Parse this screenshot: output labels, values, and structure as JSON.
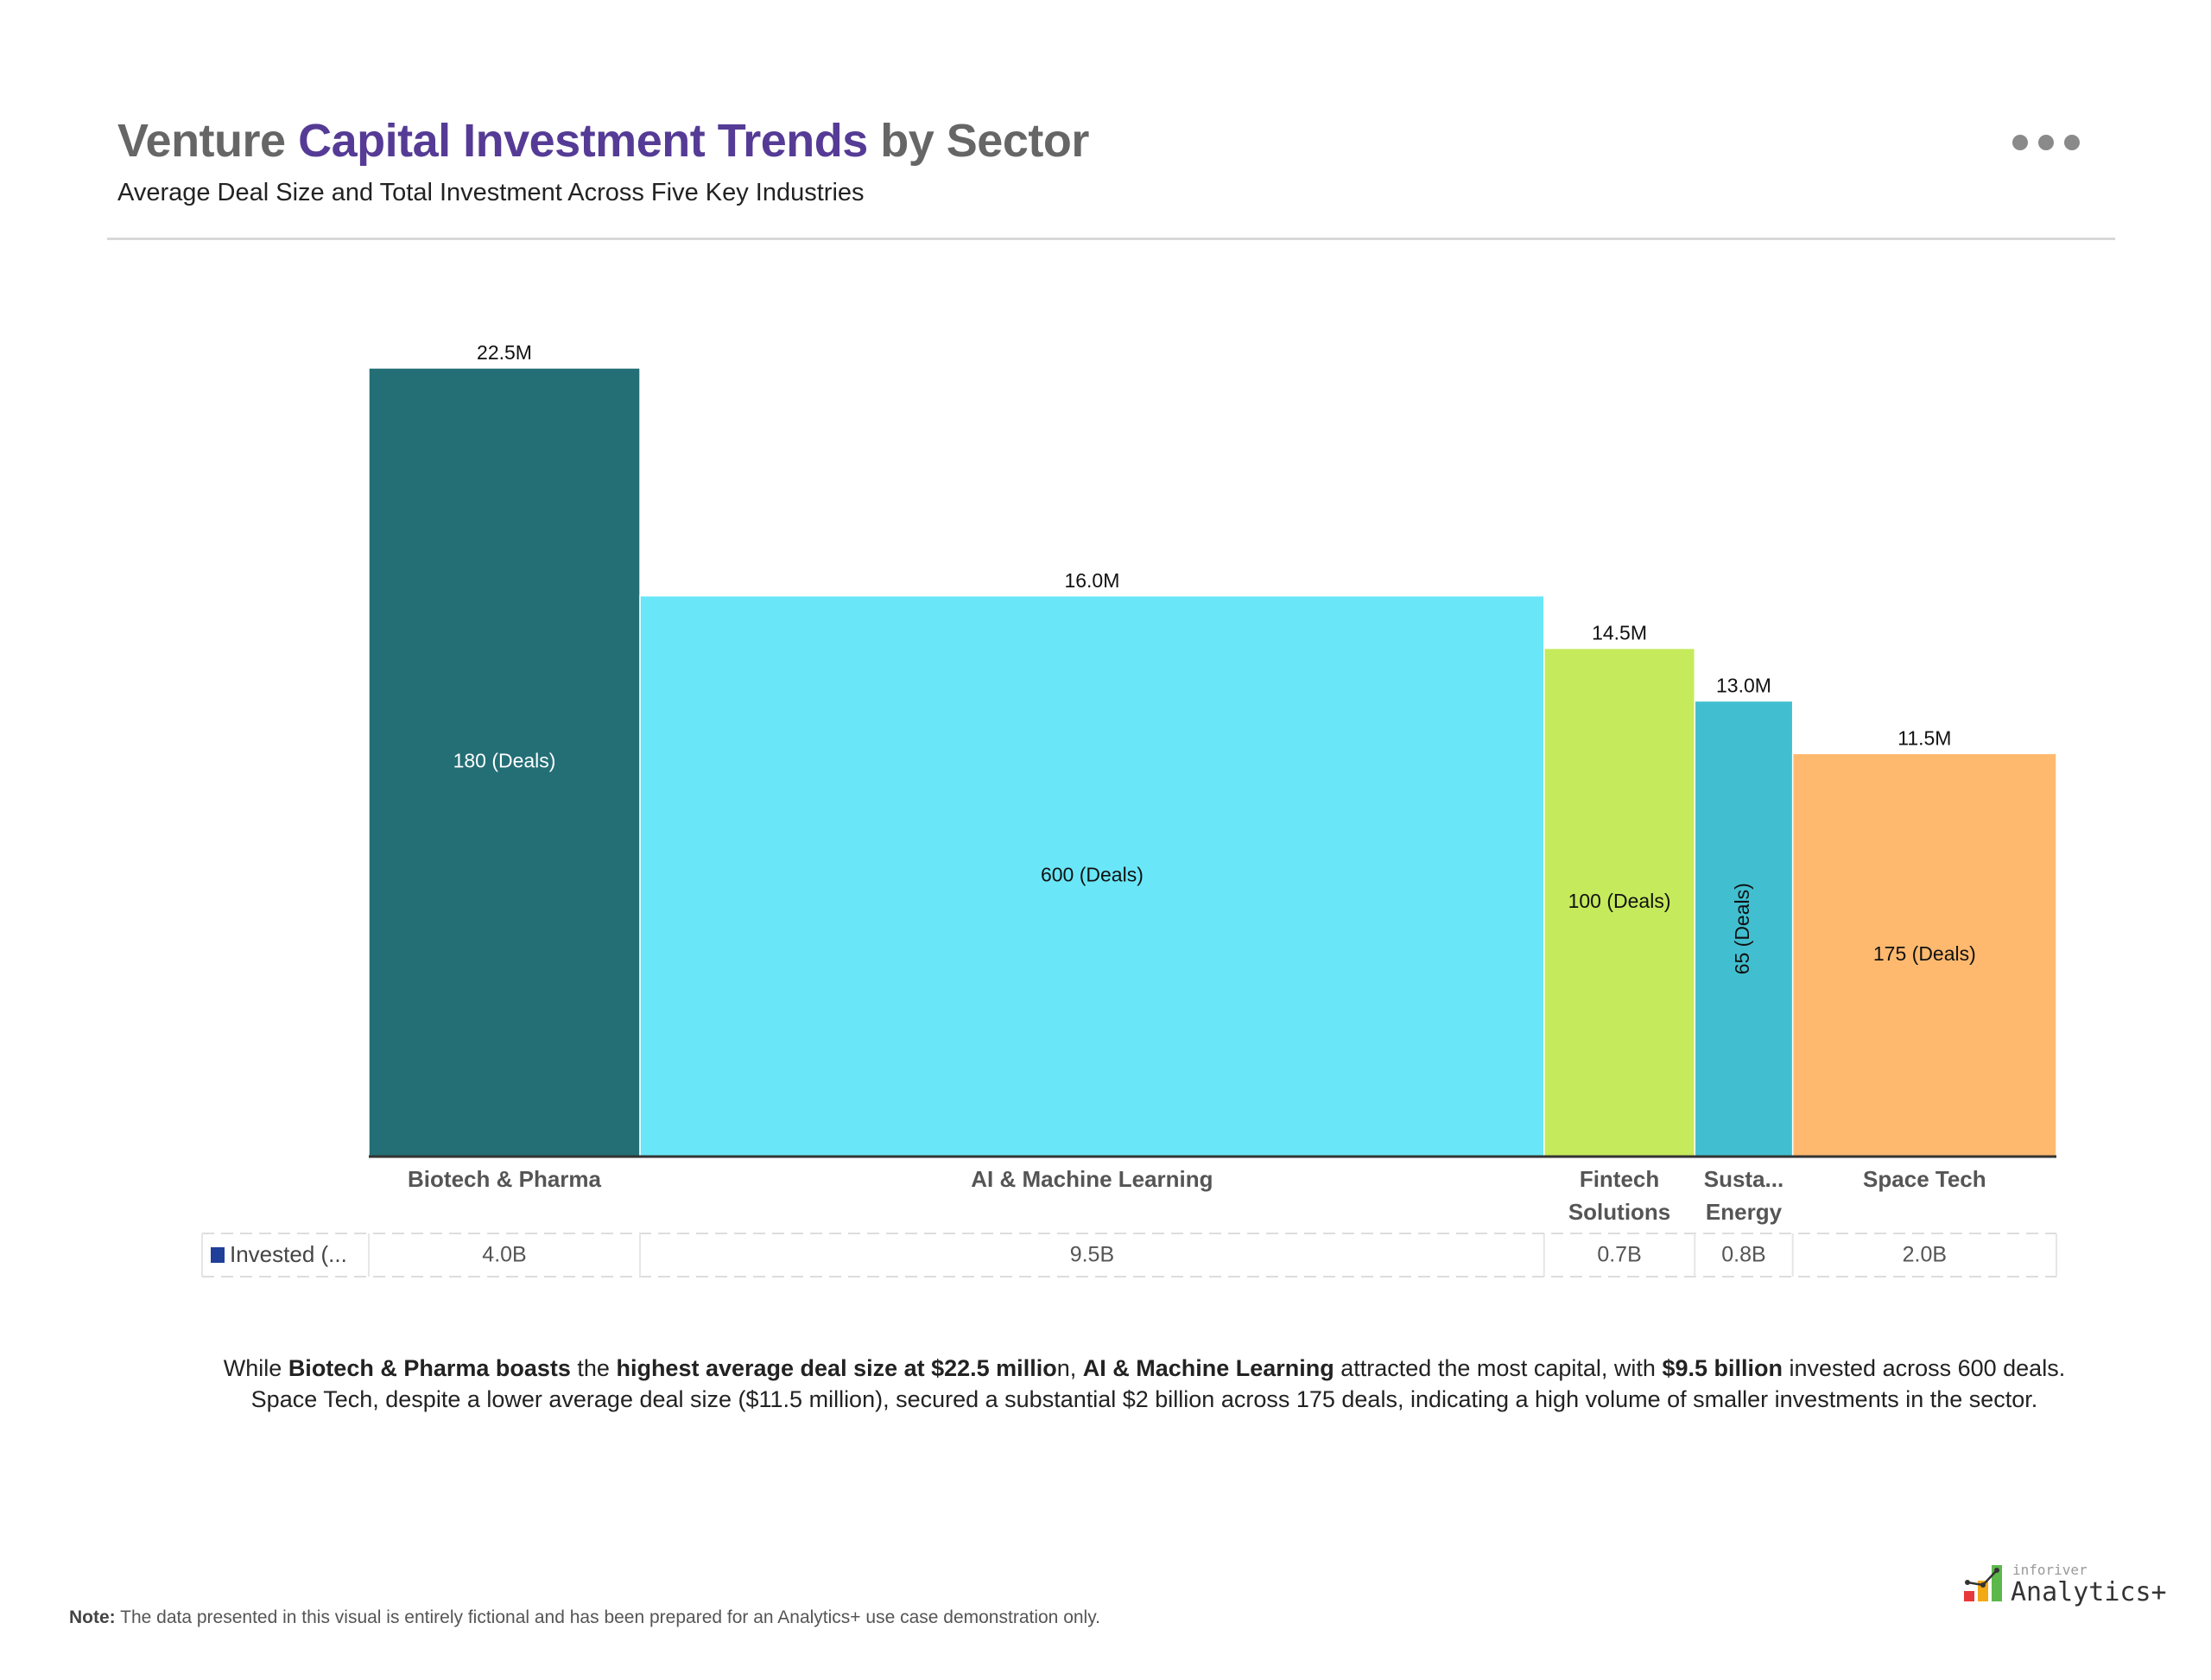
{
  "header": {
    "title_part1": "Venture ",
    "title_highlight": "Capital Investment Trends",
    "title_part2": " by Sector",
    "subtitle": "Average Deal Size and Total Investment Across Five Key Industries",
    "more_icon": "more-horizontal-icon"
  },
  "chart_data": {
    "type": "bar",
    "variant": "variable-width (width = number of deals)",
    "categories": [
      "Biotech & Pharma",
      "AI & Machine Learning",
      "Fintech Solutions",
      "Susta... Energy",
      "Space Tech"
    ],
    "category_lines": [
      [
        "Biotech & Pharma"
      ],
      [
        "AI & Machine Learning"
      ],
      [
        "Fintech",
        "Solutions"
      ],
      [
        "Susta...",
        "Energy"
      ],
      [
        "Space Tech"
      ]
    ],
    "series": [
      {
        "name": "Average Deal Size",
        "values": [
          22.5,
          16.0,
          14.5,
          13.0,
          11.5
        ],
        "labels": [
          "22.5M",
          "16.0M",
          "14.5M",
          "13.0M",
          "11.5M"
        ]
      },
      {
        "name": "Deals",
        "values": [
          180,
          600,
          100,
          65,
          175
        ],
        "labels": [
          "180 (Deals)",
          "600 (Deals)",
          "100 (Deals)",
          "65 (Deals)",
          "175 (Deals)"
        ]
      },
      {
        "name": "Invested (...",
        "values": [
          4.0,
          9.5,
          0.7,
          0.8,
          2.0
        ],
        "labels": [
          "4.0B",
          "9.5B",
          "0.7B",
          "0.8B",
          "2.0B"
        ]
      }
    ],
    "colors": [
      "#246F76",
      "#69E7F8",
      "#C5EA5B",
      "#41BFD0",
      "#FFB96E"
    ],
    "label_colors": [
      "#ffffff",
      "#111111",
      "#111111",
      "#111111",
      "#111111"
    ],
    "rotated_label": [
      false,
      false,
      false,
      true,
      false
    ],
    "table_row_label": "Invested (...",
    "table_marker_color": "#1F3F99",
    "ylim": [
      0,
      22.5
    ],
    "grid": false
  },
  "insight": {
    "t1": "While ",
    "b1": "Biotech & Pharma boasts",
    "t2": " the ",
    "b2": "highest average deal size at $22.5 millio",
    "t3": "n, ",
    "b3": "AI & Machine Learning",
    "t4": " attracted the most capital, with ",
    "b4": "$9.5 billion",
    "t5": " invested across 600 deals.",
    "line2": "Space Tech, despite a lower average deal size ($11.5 million), secured a substantial $2 billion across 175 deals, indicating a high volume of smaller investments in the sector."
  },
  "note": {
    "label": "Note:",
    "text": " The data presented in this visual is entirely fictional and has been prepared for an Analytics+ use case demonstration only."
  },
  "logo": {
    "small": "inforiver",
    "big": "Analytics+"
  }
}
